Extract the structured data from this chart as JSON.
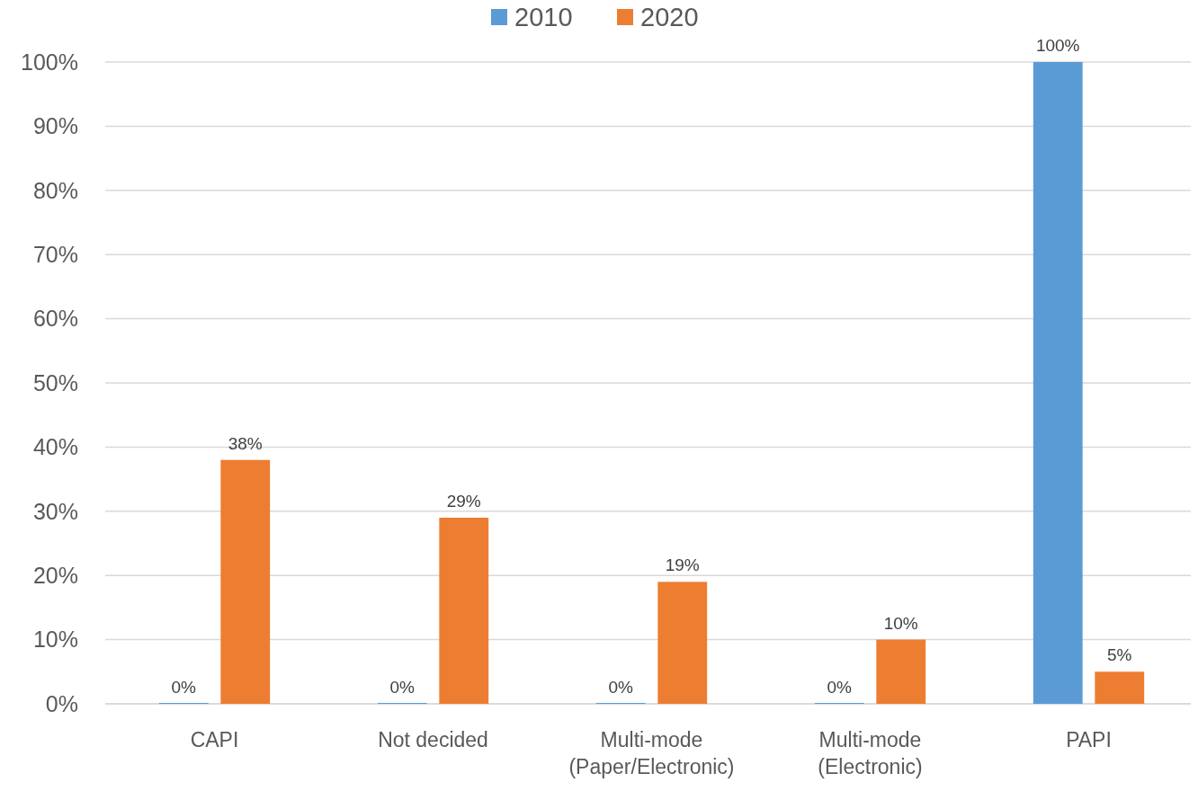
{
  "chart_data": {
    "type": "bar",
    "categories": [
      "CAPI",
      "Not decided",
      "Multi-mode\n(Paper/Electronic)",
      "Multi-mode\n(Electronic)",
      "PAPI"
    ],
    "series": [
      {
        "name": "2010",
        "color": "#5b9bd5",
        "values": [
          0,
          0,
          0,
          0,
          100
        ],
        "value_labels": [
          "0%",
          "0%",
          "0%",
          "0%",
          "100%"
        ]
      },
      {
        "name": "2020",
        "color": "#ed7d31",
        "values": [
          38,
          29,
          19,
          10,
          5
        ],
        "value_labels": [
          "38%",
          "29%",
          "19%",
          "10%",
          "5%"
        ]
      }
    ],
    "ylim": [
      0,
      100
    ],
    "yticks": [
      {
        "value": 0,
        "label": "0%"
      },
      {
        "value": 10,
        "label": "10%"
      },
      {
        "value": 20,
        "label": "20%"
      },
      {
        "value": 30,
        "label": "30%"
      },
      {
        "value": 40,
        "label": "40%"
      },
      {
        "value": 50,
        "label": "50%"
      },
      {
        "value": 60,
        "label": "60%"
      },
      {
        "value": 70,
        "label": "70%"
      },
      {
        "value": 80,
        "label": "80%"
      },
      {
        "value": 90,
        "label": "90%"
      },
      {
        "value": 100,
        "label": "100%"
      }
    ],
    "grid": "y",
    "legend": "top"
  }
}
